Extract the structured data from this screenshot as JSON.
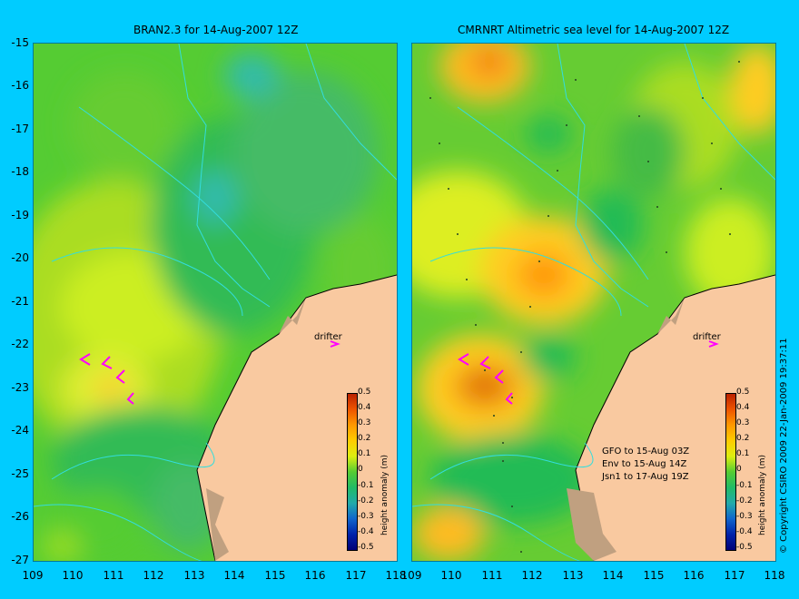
{
  "panels": [
    {
      "title": "BRAN2.3 for 14-Aug-2007 12Z",
      "drifter_label": "drifter",
      "colorbar_label": "height anomaly (m)"
    },
    {
      "title": "CMRNRT Altimetric sea level  for 14-Aug-2007 12Z",
      "drifter_label": "drifter",
      "colorbar_label": "height anomaly (m)",
      "satellite_legend": [
        "GFO to 15-Aug 03Z",
        "Env to 15-Aug 14Z",
        "Jsn1 to 17-Aug 19Z"
      ]
    }
  ],
  "axes": {
    "y_ticks": [
      "-15",
      "-16",
      "-17",
      "-18",
      "-19",
      "-20",
      "-21",
      "-22",
      "-23",
      "-24",
      "-25",
      "-26",
      "-27"
    ],
    "x_ticks": [
      "109",
      "110",
      "111",
      "112",
      "113",
      "114",
      "115",
      "116",
      "117",
      "118"
    ]
  },
  "colorbar_ticks": [
    "0.5",
    "0.4",
    "0.3",
    "0.2",
    "0.1",
    "0",
    "-0.1",
    "-0.2",
    "-0.3",
    "-0.4",
    "-0.5"
  ],
  "colors": {
    "background": "#00ccff",
    "land": "#f9c9a0",
    "coast_shelf": "#c0a080",
    "bathymetry": "#33dddd",
    "drifter_arrow": "#ff00ff"
  },
  "copyright": "© Copyright CSIRO 2009   22-Jan-2009 19:37:11"
}
